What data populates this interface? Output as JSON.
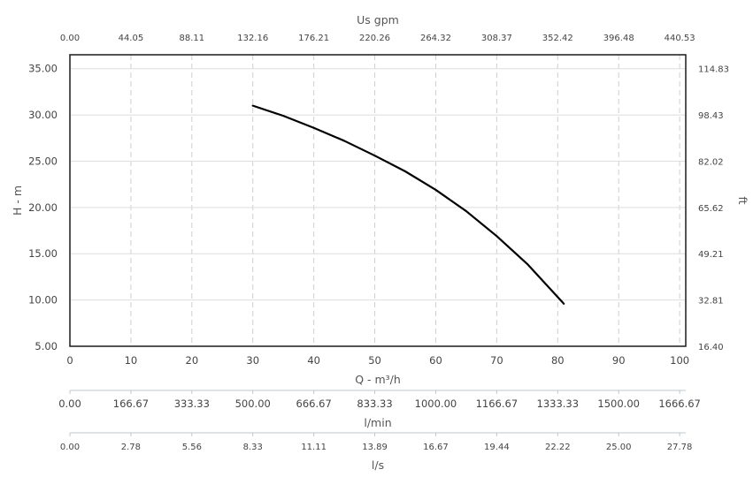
{
  "chart_data": {
    "type": "line",
    "xlabel": "Q - m³/h",
    "ylabel": "H - m",
    "xlim": [
      0,
      101
    ],
    "ylim": [
      5,
      36.5
    ],
    "x_ticks": [
      "0",
      "10",
      "20",
      "30",
      "40",
      "50",
      "60",
      "70",
      "80",
      "90",
      "100"
    ],
    "y_ticks": [
      "5.00",
      "10.00",
      "15.00",
      "20.00",
      "25.00",
      "30.00",
      "35.00"
    ],
    "grid": true,
    "series": [
      {
        "x": [
          30,
          35,
          40,
          45,
          50,
          55,
          60,
          65,
          70,
          75,
          81
        ],
        "y": [
          31.0,
          29.9,
          28.6,
          27.2,
          25.6,
          23.9,
          21.9,
          19.6,
          16.9,
          13.9,
          9.6
        ],
        "color": "#000000"
      }
    ],
    "top_axis": {
      "title": "Us gpm",
      "ticks": [
        "0.00",
        "44.05",
        "88.11",
        "132.16",
        "176.21",
        "220.26",
        "264.32",
        "308.37",
        "352.42",
        "396.48",
        "440.53"
      ]
    },
    "right_axis": {
      "title": "ft",
      "ticks": [
        "16.40",
        "32.81",
        "49.21",
        "65.62",
        "82.02",
        "98.43",
        "114.83"
      ]
    },
    "bottom_axes": [
      {
        "title": "l/min",
        "ticks": [
          "0.00",
          "166.67",
          "333.33",
          "500.00",
          "666.67",
          "833.33",
          "1000.00",
          "1166.67",
          "1333.33",
          "1500.00",
          "1666.67"
        ]
      },
      {
        "title": "l/s",
        "ticks": [
          "0.00",
          "2.78",
          "5.56",
          "8.33",
          "11.11",
          "13.89",
          "16.67",
          "19.44",
          "22.22",
          "25.00",
          "27.78"
        ]
      }
    ]
  }
}
